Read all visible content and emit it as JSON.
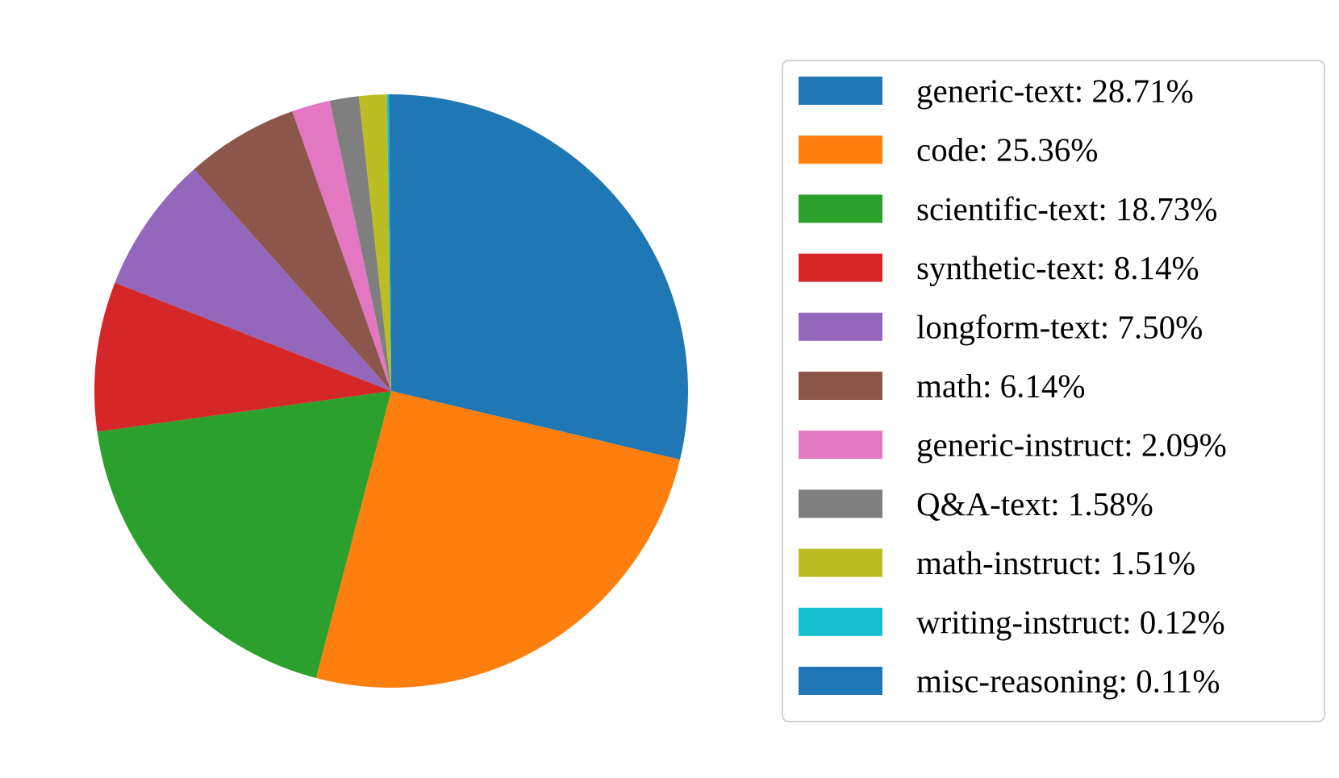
{
  "chart_data": {
    "type": "pie",
    "title": "",
    "start_angle_deg": 90,
    "direction": "clockwise",
    "legend_position": "right",
    "slices": [
      {
        "label": "generic-text",
        "value": 28.71,
        "display": "generic-text: 28.71%",
        "color": "#1f77b4"
      },
      {
        "label": "code",
        "value": 25.36,
        "display": "code: 25.36%",
        "color": "#ff7f0e"
      },
      {
        "label": "scientific-text",
        "value": 18.73,
        "display": "scientific-text: 18.73%",
        "color": "#2ca02c"
      },
      {
        "label": "synthetic-text",
        "value": 8.14,
        "display": "synthetic-text: 8.14%",
        "color": "#d62728"
      },
      {
        "label": "longform-text",
        "value": 7.5,
        "display": "longform-text: 7.50%",
        "color": "#9467bd"
      },
      {
        "label": "math",
        "value": 6.14,
        "display": "math: 6.14%",
        "color": "#8c564b"
      },
      {
        "label": "generic-instruct",
        "value": 2.09,
        "display": "generic-instruct: 2.09%",
        "color": "#e377c2"
      },
      {
        "label": "Q&A-text",
        "value": 1.58,
        "display": "Q&A-text: 1.58%",
        "color": "#7f7f7f"
      },
      {
        "label": "math-instruct",
        "value": 1.51,
        "display": "math-instruct: 1.51%",
        "color": "#bcbd22"
      },
      {
        "label": "writing-instruct",
        "value": 0.12,
        "display": "writing-instruct: 0.12%",
        "color": "#17becf"
      },
      {
        "label": "misc-reasoning",
        "value": 0.11,
        "display": "misc-reasoning: 0.11%",
        "color": "#1f77b4"
      }
    ]
  }
}
